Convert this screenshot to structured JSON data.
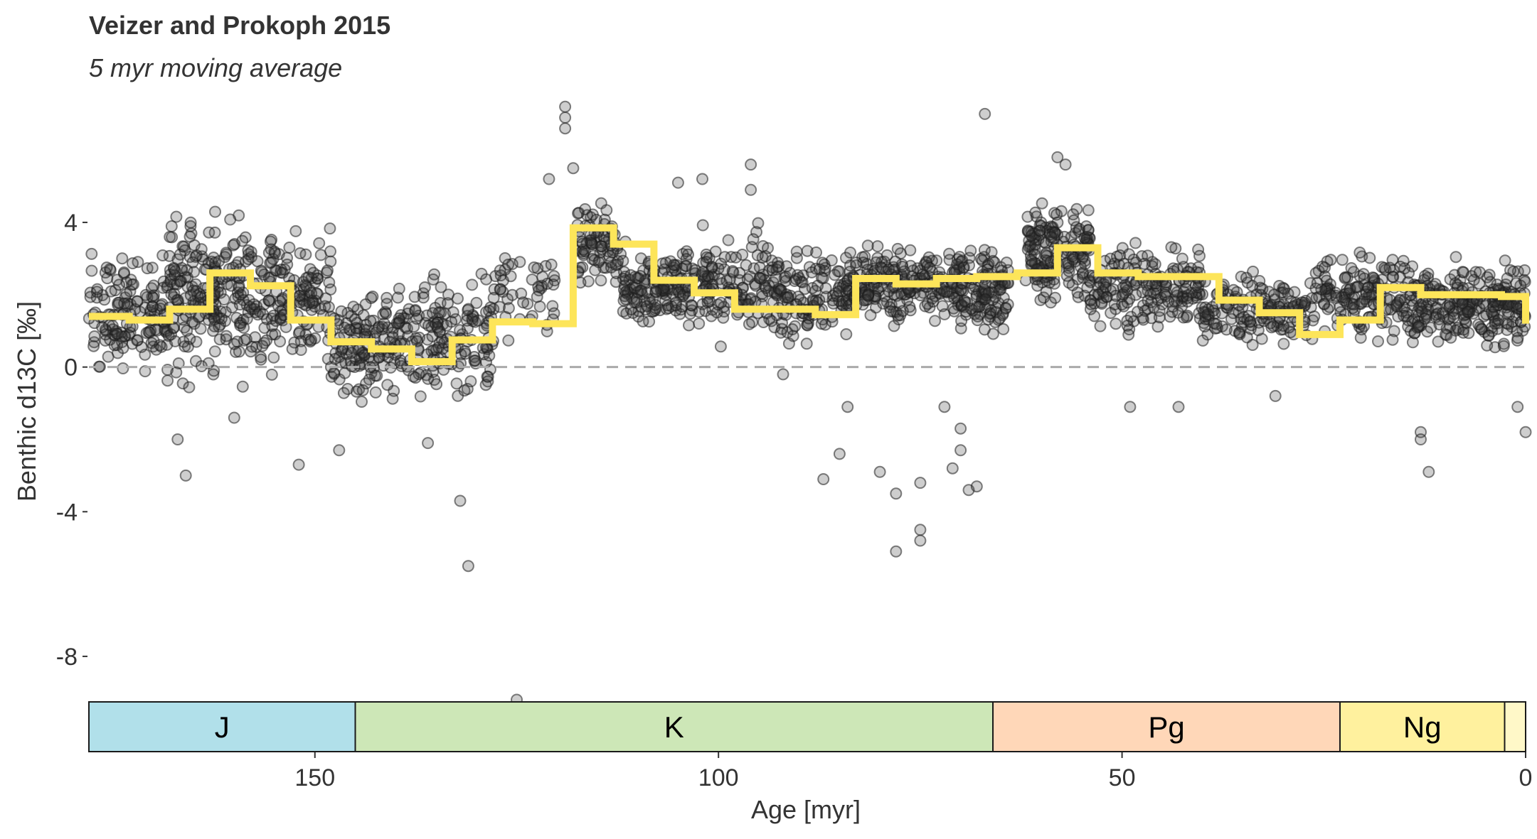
{
  "chart_data": {
    "type": "scatter",
    "title": "Veizer and Prokoph 2015",
    "subtitle": "5 myr moving average",
    "xlabel": "Age [myr]",
    "ylabel": "Benthic d13C [‰]",
    "xlim": [
      178,
      0
    ],
    "ylim": [
      -9.2,
      7.4
    ],
    "x_ticks": [
      150,
      100,
      50,
      0
    ],
    "y_ticks": [
      4,
      0,
      -4,
      -8
    ],
    "grid": false,
    "reference_line": {
      "y": 0,
      "style": "dashed",
      "color": "#aaaaaa"
    },
    "colors": {
      "points": "#333333",
      "moving_average": "#fde55a"
    },
    "moving_average": {
      "name": "5 myr moving average",
      "step": [
        [
          178,
          1.4
        ],
        [
          173,
          1.3
        ],
        [
          168,
          1.6
        ],
        [
          163,
          2.6
        ],
        [
          158,
          2.25
        ],
        [
          153,
          1.3
        ],
        [
          148,
          0.7
        ],
        [
          143,
          0.5
        ],
        [
          138,
          0.15
        ],
        [
          133,
          0.75
        ],
        [
          128,
          1.25
        ],
        [
          123,
          1.2
        ],
        [
          118,
          3.85
        ],
        [
          113,
          3.4
        ],
        [
          108,
          2.4
        ],
        [
          103,
          2.05
        ],
        [
          98,
          1.6
        ],
        [
          93,
          1.6
        ],
        [
          88,
          1.45
        ],
        [
          83,
          2.45
        ],
        [
          78,
          2.3
        ],
        [
          73,
          2.45
        ],
        [
          68,
          2.5
        ],
        [
          63,
          2.6
        ],
        [
          58,
          3.3
        ],
        [
          53,
          2.6
        ],
        [
          48,
          2.5
        ],
        [
          43,
          2.5
        ],
        [
          38,
          1.85
        ],
        [
          33,
          1.5
        ],
        [
          28,
          0.9
        ],
        [
          23,
          1.3
        ],
        [
          18,
          2.2
        ],
        [
          13,
          2.0
        ],
        [
          8,
          2.0
        ],
        [
          3,
          1.95
        ],
        [
          0,
          1.2
        ]
      ]
    },
    "point_bands": [
      {
        "x": [
          178,
          168
        ],
        "y": [
          -0.8,
          3.6
        ],
        "n": 150
      },
      {
        "x": [
          168,
          155
        ],
        "y": [
          -1.0,
          5.0
        ],
        "n": 260
      },
      {
        "x": [
          155,
          148
        ],
        "y": [
          -0.6,
          4.2
        ],
        "n": 110
      },
      {
        "x": [
          148,
          138
        ],
        "y": [
          -1.2,
          2.6
        ],
        "n": 150
      },
      {
        "x": [
          138,
          128
        ],
        "y": [
          -1.4,
          3.0
        ],
        "n": 140
      },
      {
        "x": [
          128,
          120
        ],
        "y": [
          0.2,
          4.2
        ],
        "n": 50
      },
      {
        "x": [
          118,
          112
        ],
        "y": [
          1.8,
          4.8
        ],
        "n": 80
      },
      {
        "x": [
          112,
          104
        ],
        "y": [
          1.0,
          3.6
        ],
        "n": 130
      },
      {
        "x": [
          104,
          92
        ],
        "y": [
          0.2,
          4.2
        ],
        "n": 170
      },
      {
        "x": [
          92,
          84
        ],
        "y": [
          0.2,
          3.6
        ],
        "n": 110
      },
      {
        "x": [
          84,
          70
        ],
        "y": [
          1.0,
          3.6
        ],
        "n": 220
      },
      {
        "x": [
          70,
          64
        ],
        "y": [
          0.6,
          3.6
        ],
        "n": 120
      },
      {
        "x": [
          62,
          54
        ],
        "y": [
          1.2,
          5.2
        ],
        "n": 170
      },
      {
        "x": [
          54,
          40
        ],
        "y": [
          0.8,
          3.6
        ],
        "n": 190
      },
      {
        "x": [
          40,
          26
        ],
        "y": [
          0.2,
          3.0
        ],
        "n": 160
      },
      {
        "x": [
          26,
          14
        ],
        "y": [
          0.4,
          3.6
        ],
        "n": 160
      },
      {
        "x": [
          14,
          0
        ],
        "y": [
          0.2,
          3.2
        ],
        "n": 260
      }
    ],
    "outlier_points": [
      [
        167,
        -2.0
      ],
      [
        166,
        -3.0
      ],
      [
        160,
        -1.4
      ],
      [
        152,
        -2.7
      ],
      [
        147,
        -2.3
      ],
      [
        136,
        -2.1
      ],
      [
        132,
        -3.7
      ],
      [
        131,
        -5.5
      ],
      [
        125,
        -9.2
      ],
      [
        119,
        6.9
      ],
      [
        119,
        7.2
      ],
      [
        119,
        6.6
      ],
      [
        118,
        5.5
      ],
      [
        121,
        5.2
      ],
      [
        105,
        5.1
      ],
      [
        102,
        5.2
      ],
      [
        96,
        5.6
      ],
      [
        96,
        4.9
      ],
      [
        92,
        -0.2
      ],
      [
        87,
        -3.1
      ],
      [
        84,
        -1.1
      ],
      [
        85,
        -2.4
      ],
      [
        80,
        -2.9
      ],
      [
        78,
        -3.5
      ],
      [
        78,
        -5.1
      ],
      [
        75,
        -3.2
      ],
      [
        75,
        -4.5
      ],
      [
        75,
        -4.8
      ],
      [
        72,
        -1.1
      ],
      [
        71,
        -2.8
      ],
      [
        70,
        -2.3
      ],
      [
        70,
        -1.7
      ],
      [
        69,
        -3.4
      ],
      [
        68,
        -3.3
      ],
      [
        67,
        7.0
      ],
      [
        58,
        5.8
      ],
      [
        57,
        5.6
      ],
      [
        49,
        -1.1
      ],
      [
        43,
        -1.1
      ],
      [
        31,
        -0.8
      ],
      [
        13,
        -1.8
      ],
      [
        13,
        -2.0
      ],
      [
        12,
        -2.9
      ],
      [
        1,
        -1.1
      ],
      [
        0,
        -1.8
      ]
    ],
    "timescale": [
      {
        "label": "J",
        "from": 178,
        "to": 145.0,
        "color": "#b1e0ea"
      },
      {
        "label": "K",
        "from": 145.0,
        "to": 66.0,
        "color": "#cde7b7"
      },
      {
        "label": "Pg",
        "from": 66.0,
        "to": 23.0,
        "color": "#ffd7b8"
      },
      {
        "label": "Ng",
        "from": 23.0,
        "to": 2.6,
        "color": "#fff19e"
      },
      {
        "label": "",
        "from": 2.6,
        "to": 0,
        "color": "#fff8c8"
      }
    ]
  }
}
